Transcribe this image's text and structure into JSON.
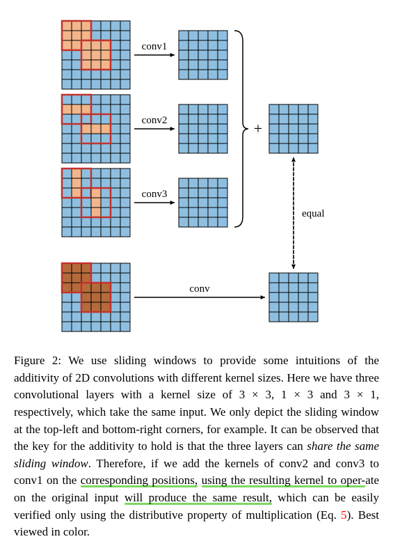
{
  "figure": {
    "grid_fill": "#8fbfe0",
    "grid_stroke": "#000000",
    "input_grid_size": 7,
    "output_grid_size": 5,
    "cell_size": 14,
    "kernel_frame_color": "#c2322d",
    "kernel_frame_width": 2.5,
    "kernel_fill_light": "#f3b58b",
    "kernel_fill_dark": "#b56a3b",
    "arrow_color": "#000000",
    "rows": [
      {
        "label": "conv1",
        "kernels": [
          {
            "x": 0,
            "y": 0,
            "w": 3,
            "h": 3,
            "fill_all": true,
            "fill": "light"
          },
          {
            "x": 2,
            "y": 2,
            "w": 3,
            "h": 3,
            "fill_all": true,
            "fill": "light"
          }
        ]
      },
      {
        "label": "conv2",
        "kernels": [
          {
            "x": 0,
            "y": 0,
            "w": 3,
            "h": 3,
            "fill_all": false,
            "fill": "light",
            "fill_cells": [
              [
                0,
                1
              ],
              [
                1,
                1
              ],
              [
                2,
                1
              ]
            ]
          },
          {
            "x": 2,
            "y": 2,
            "w": 3,
            "h": 3,
            "fill_all": false,
            "fill": "light",
            "fill_cells": [
              [
                0,
                1
              ],
              [
                1,
                1
              ],
              [
                2,
                1
              ]
            ]
          }
        ]
      },
      {
        "label": "conv3",
        "kernels": [
          {
            "x": 0,
            "y": 0,
            "w": 3,
            "h": 3,
            "fill_all": false,
            "fill": "light",
            "fill_cells": [
              [
                1,
                0
              ],
              [
                1,
                1
              ],
              [
                1,
                2
              ]
            ]
          },
          {
            "x": 2,
            "y": 2,
            "w": 3,
            "h": 3,
            "fill_all": false,
            "fill": "light",
            "fill_cells": [
              [
                1,
                0
              ],
              [
                1,
                1
              ],
              [
                1,
                2
              ]
            ]
          }
        ]
      },
      {
        "label": "conv",
        "kernels": [
          {
            "x": 0,
            "y": 0,
            "w": 3,
            "h": 3,
            "fill_all": true,
            "fill": "dark"
          },
          {
            "x": 2,
            "y": 2,
            "w": 3,
            "h": 3,
            "fill_all": true,
            "fill": "dark"
          }
        ]
      }
    ],
    "plus_symbol": "+",
    "equal_label": "equal",
    "bracket_color": "#000000"
  },
  "caption": {
    "prefix": "Figure 2: ",
    "s1": "We use sliding windows to provide some intuitions of the additivity of 2D convolutions with different kernel sizes. Here we have three convolutional layers with a kernel size of 3 × 3, 1 × 3 and 3 × 1, respectively, which take the same input. We only depict the sliding window at the top-left and bottom-right corners, for example. It can be observed that the key for the additivity to hold is that the three layers can ",
    "em1": "share the same sliding window",
    "s2": ". Therefore, ",
    "h1": "if we add the kernels of conv2 and conv3 to conv1 on the",
    "sp1": " ",
    "h2": "corresponding positions,",
    "sp2": " ",
    "h3": "using the resulting kernel to oper-",
    "h4": "ate on the original input",
    "sp3": " ",
    "h5": "will produce the same result,",
    "s3": " which can be easily verified only using the distributive property of multiplication (Eq. ",
    "eqnum": "5",
    "s4": "). Best viewed in color."
  }
}
